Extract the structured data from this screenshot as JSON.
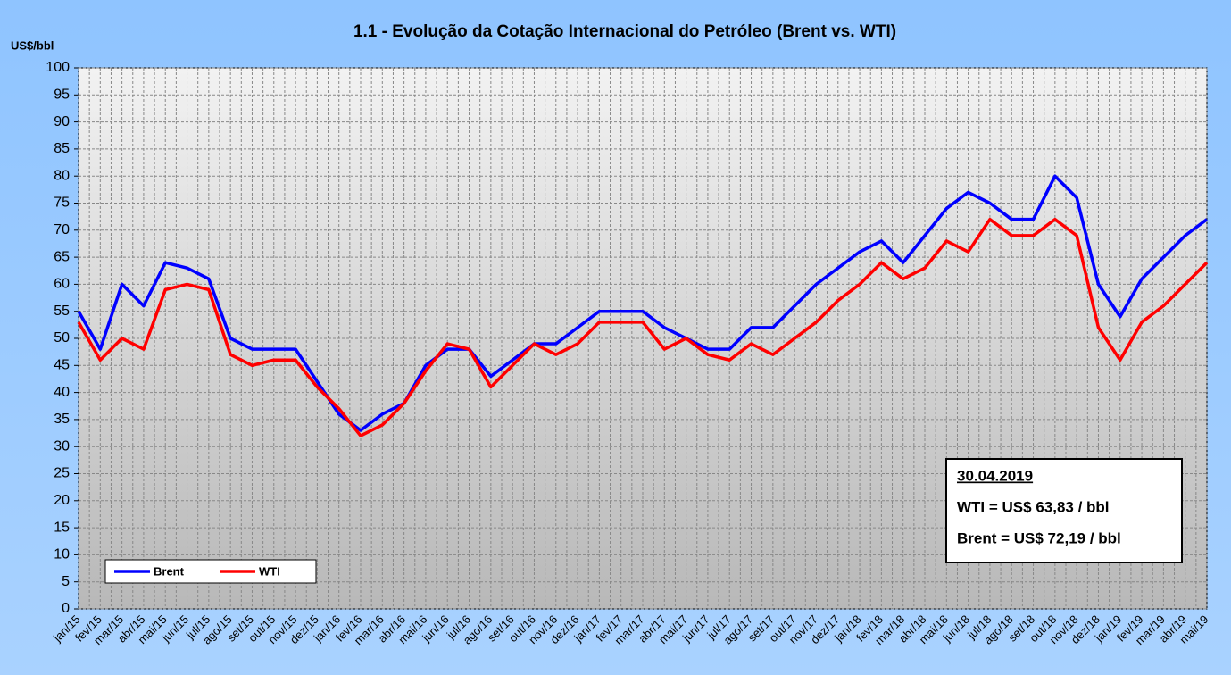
{
  "chart_data": {
    "type": "line",
    "title": "1.1 - Evolução da Cotação Internacional do Petróleo (Brent vs. WTI)",
    "y_label": "US$/bbl",
    "categories": [
      "jan/15",
      "fev/15",
      "mar/15",
      "abr/15",
      "mai/15",
      "jun/15",
      "jul/15",
      "ago/15",
      "set/15",
      "out/15",
      "nov/15",
      "dez/15",
      "jan/16",
      "fev/16",
      "mar/16",
      "abr/16",
      "mai/16",
      "jun/16",
      "jul/16",
      "ago/16",
      "set/16",
      "out/16",
      "nov/16",
      "dez/16",
      "jan/17",
      "fev/17",
      "mar/17",
      "abr/17",
      "mai/17",
      "jun/17",
      "jul/17",
      "ago/17",
      "set/17",
      "out/17",
      "nov/17",
      "dez/17",
      "jan/18",
      "fev/18",
      "mar/18",
      "abr/18",
      "mai/18",
      "jun/18",
      "jul/18",
      "ago/18",
      "set/18",
      "out/18",
      "nov/18",
      "dez/18",
      "jan/19",
      "fev/19",
      "mar/19",
      "abr/19",
      "mai/19"
    ],
    "series": [
      {
        "name": "Brent",
        "color": "#0000ff",
        "values": [
          55,
          48,
          60,
          56,
          64,
          63,
          61,
          50,
          48,
          48,
          48,
          42,
          36,
          33,
          36,
          38,
          45,
          48,
          48,
          43,
          46,
          49,
          49,
          52,
          55,
          55,
          55,
          52,
          50,
          48,
          48,
          52,
          52,
          56,
          60,
          63,
          66,
          68,
          64,
          69,
          74,
          77,
          75,
          72,
          72,
          80,
          76,
          60,
          54,
          61,
          65,
          69,
          72
        ]
      },
      {
        "name": "WTI",
        "color": "#ff0000",
        "values": [
          53,
          46,
          50,
          48,
          59,
          60,
          59,
          47,
          45,
          46,
          46,
          41,
          37,
          32,
          34,
          38,
          44,
          49,
          48,
          41,
          45,
          49,
          47,
          49,
          53,
          53,
          53,
          48,
          50,
          47,
          46,
          49,
          47,
          50,
          53,
          57,
          60,
          64,
          61,
          63,
          68,
          66,
          72,
          69,
          69,
          72,
          69,
          52,
          46,
          53,
          56,
          60,
          64
        ]
      }
    ],
    "ylim": [
      0,
      100
    ],
    "yticks": [
      0,
      5,
      10,
      15,
      20,
      25,
      30,
      35,
      40,
      45,
      50,
      55,
      60,
      65,
      70,
      75,
      80,
      85,
      90,
      95,
      100
    ],
    "grid": true,
    "legend": "lower left",
    "annotation": {
      "date": "30.04.2019",
      "wti": "WTI = US$ 63,83 / bbl",
      "brent": "Brent = US$ 72,19 / bbl"
    }
  }
}
